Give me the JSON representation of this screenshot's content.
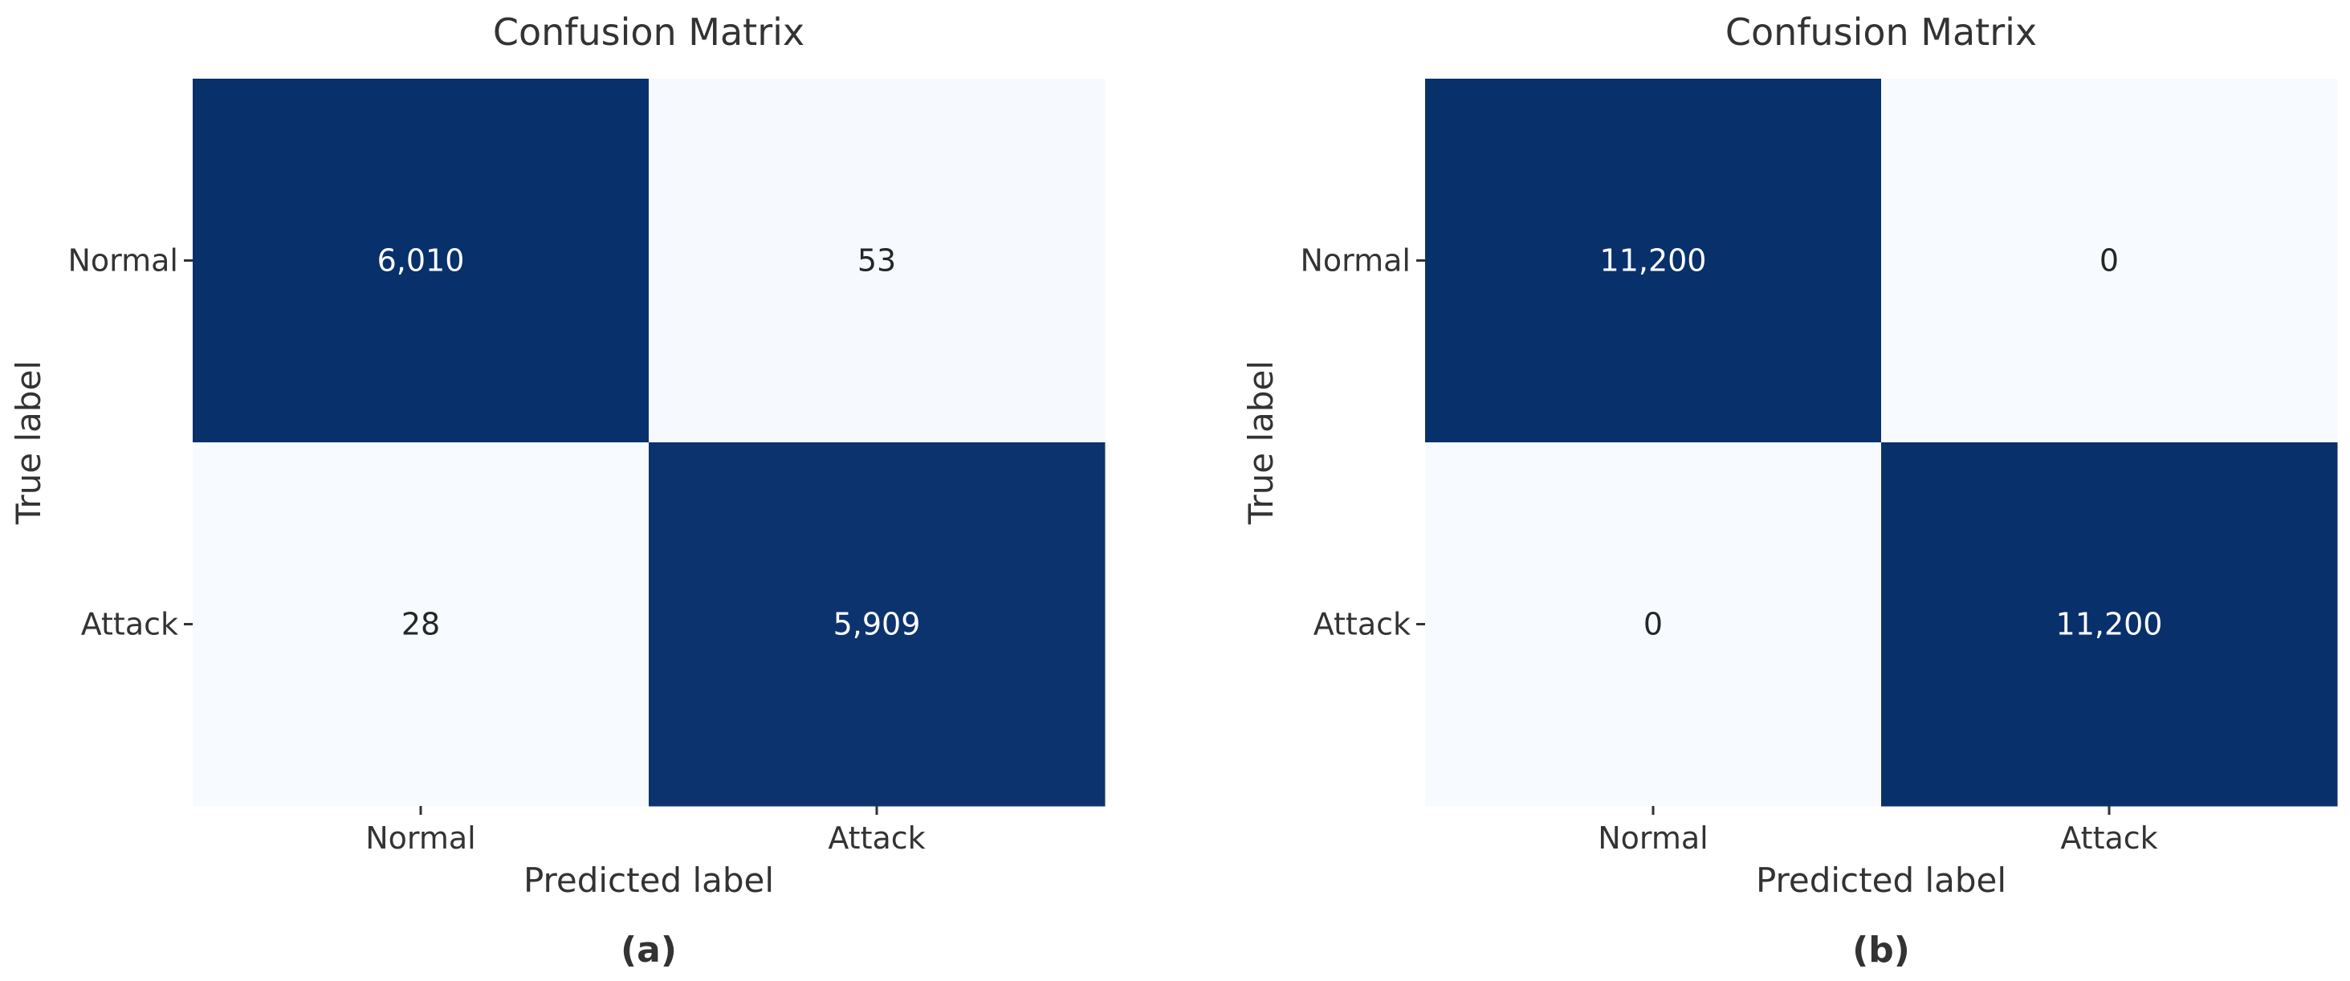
{
  "chart_data": [
    {
      "type": "heatmap",
      "title": "Confusion Matrix",
      "xlabel": "Predicted label",
      "ylabel": "True label",
      "x_categories": [
        "Normal",
        "Attack"
      ],
      "y_categories": [
        "Normal",
        "Attack"
      ],
      "values": [
        [
          6010,
          53
        ],
        [
          28,
          5909
        ]
      ],
      "cell_labels": [
        [
          "6,010",
          "53"
        ],
        [
          "28",
          "5,909"
        ]
      ],
      "caption": "(a)",
      "colormap": "Blues",
      "colorbar": false
    },
    {
      "type": "heatmap",
      "title": "Confusion Matrix",
      "xlabel": "Predicted label",
      "ylabel": "True label",
      "x_categories": [
        "Normal",
        "Attack"
      ],
      "y_categories": [
        "Normal",
        "Attack"
      ],
      "values": [
        [
          11200,
          0
        ],
        [
          0,
          11200
        ]
      ],
      "cell_labels": [
        [
          "11,200",
          "0"
        ],
        [
          "0",
          "11,200"
        ]
      ],
      "caption": "(b)",
      "colormap": "Blues",
      "colorbar": false
    }
  ],
  "colors": {
    "high": "#08306b",
    "low": "#f7fbff",
    "text_on_dark": "#ffffff",
    "text_on_light": "#262626",
    "axis_text": "#333333",
    "tick": "#333333"
  }
}
